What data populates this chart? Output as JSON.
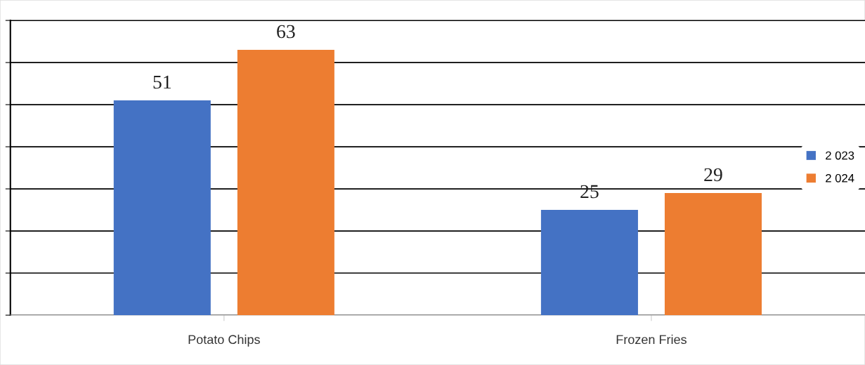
{
  "chart_data": {
    "type": "bar",
    "categories": [
      "Potato Chips",
      "Frozen Fries"
    ],
    "series": [
      {
        "name": "2 023",
        "color": "#4472c4",
        "values": [
          51,
          25
        ]
      },
      {
        "name": "2 024",
        "color": "#ed7d31",
        "values": [
          63,
          29
        ]
      }
    ],
    "ylim": [
      0,
      70
    ],
    "yticks": [
      {
        "value": 0,
        "label": null
      },
      {
        "value": 10,
        "label": null
      },
      {
        "value": 20,
        "label": null
      },
      {
        "value": 30,
        "label": null
      },
      {
        "value": 40,
        "label": null
      },
      {
        "value": 50,
        "label": null
      },
      {
        "value": 60,
        "label": null
      },
      {
        "value": 70,
        "label": null
      }
    ],
    "grid": "y",
    "legend": "right",
    "data_labels": true
  }
}
